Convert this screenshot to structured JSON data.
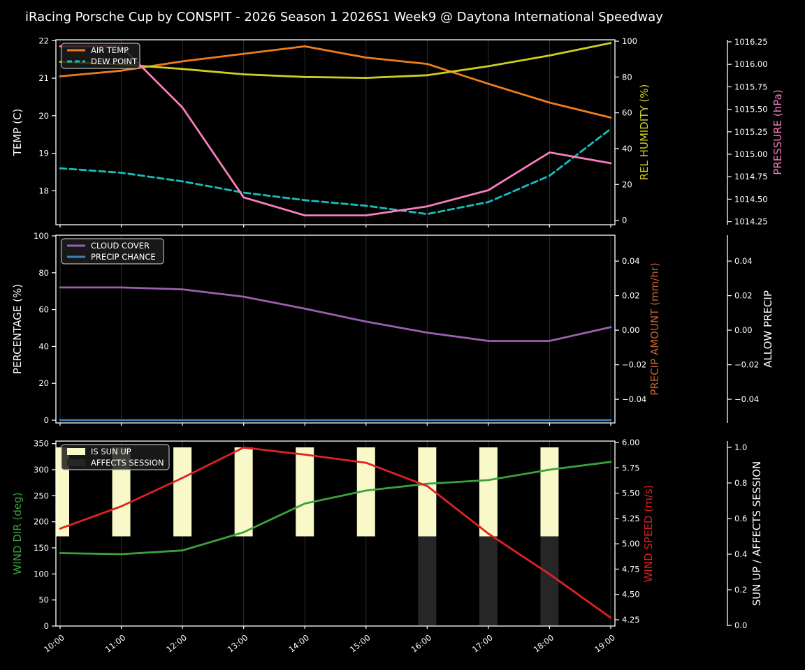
{
  "title": "iRacing Porsche Cup by CONSPIT - 2026 Season 1 2026S1 Week9 @ Daytona International Speedway",
  "colors": {
    "background": "#000000",
    "grid": "#2e2e2e",
    "spine": "#ffffff",
    "tick_text": "#ffffff",
    "legend_bg": "#1c1c1c",
    "legend_border": "#b3b3b3"
  },
  "chart_data": {
    "type": "line",
    "x_categories": [
      "10:00",
      "11:00",
      "12:00",
      "13:00",
      "14:00",
      "15:00",
      "16:00",
      "17:00",
      "18:00",
      "19:00"
    ],
    "panels": [
      {
        "id": "temperature-humidity-pressure",
        "legend": [
          {
            "label": "AIR TEMP",
            "swatch": "line",
            "color": "#ef7d1d"
          },
          {
            "label": "DEW POINT",
            "swatch": "dashed-line",
            "color": "#17bebb"
          }
        ],
        "axes": {
          "left": {
            "label": "TEMP (C)",
            "color": "#ffffff",
            "ticks": [
              "22",
              "21",
              "20",
              "19",
              "18"
            ],
            "tick_values": [
              22,
              21,
              20,
              19,
              18
            ],
            "range": [
              17.095,
              22.024
            ]
          },
          "right_inner": {
            "label": "REL HUMIDITY (%)",
            "color": "#cfcf1f",
            "ticks": [
              "100",
              "80",
              "60",
              "40",
              "20",
              "0"
            ],
            "tick_values": [
              100,
              80,
              60,
              40,
              20,
              0
            ],
            "range": [
              -2.5,
              100.78
            ]
          },
          "right_outer": {
            "label": "PRESSURE (hPa)",
            "color": "#f77fbe",
            "ticks": [
              "1016.25",
              "1016.00",
              "1015.75",
              "1015.50",
              "1015.25",
              "1015.00",
              "1014.75",
              "1014.50",
              "1014.25"
            ],
            "tick_values": [
              1016.25,
              1016.0,
              1015.75,
              1015.5,
              1015.25,
              1015.0,
              1014.75,
              1014.5,
              1014.25
            ],
            "range": [
              1014.216,
              1016.273
            ]
          }
        },
        "series": [
          {
            "name": "AIR TEMP",
            "axis": "left",
            "color": "#ef7d1d",
            "dash": null,
            "values": [
              21.05,
              21.2,
              21.45,
              21.65,
              21.85,
              21.55,
              21.38,
              20.85,
              20.35,
              19.95
            ]
          },
          {
            "name": "DEW POINT",
            "axis": "left",
            "color": "#17bebb",
            "dash": "9 5",
            "values": [
              18.6,
              18.48,
              18.25,
              17.95,
              17.75,
              17.6,
              17.38,
              17.7,
              18.4,
              19.65
            ]
          },
          {
            "name": "REL HUMIDITY",
            "axis": "right_inner",
            "color": "#cfcf1f",
            "dash": null,
            "values": [
              88.5,
              87,
              84.5,
              81.5,
              80,
              79.5,
              81,
              86,
              92,
              99
            ]
          },
          {
            "name": "PRESSURE",
            "axis": "right_outer",
            "color": "#f77fbe",
            "dash": null,
            "values": [
              1016.2,
              1016.2,
              1015.52,
              1014.52,
              1014.32,
              1014.32,
              1014.42,
              1014.6,
              1015.02,
              1014.9
            ]
          }
        ]
      },
      {
        "id": "cloud-precip",
        "legend": [
          {
            "label": "CLOUD COVER",
            "swatch": "line",
            "color": "#9a60b0"
          },
          {
            "label": "PRECIP CHANCE",
            "swatch": "line",
            "color": "#3f7fb7"
          }
        ],
        "axes": {
          "left": {
            "label": "PERCENTAGE (%)",
            "color": "#ffffff",
            "ticks": [
              "100",
              "80",
              "60",
              "40",
              "20",
              "0"
            ],
            "tick_values": [
              100,
              80,
              60,
              40,
              20,
              0
            ],
            "range": [
              -1.5,
              100.38
            ]
          },
          "right_inner": {
            "label": "PRECIP AMOUNT (mm/hr)",
            "color": "#c16232",
            "ticks": [
              "0.04",
              "0.02",
              "0.00",
              "−0.02",
              "−0.04"
            ],
            "tick_values": [
              0.04,
              0.02,
              0.0,
              -0.02,
              -0.04
            ],
            "range": [
              -0.0537,
              0.055
            ]
          },
          "right_outer": {
            "label": "ALLOW PRECIP",
            "color": "#ffffff",
            "ticks": [
              "0.04",
              "0.02",
              "0.00",
              "−0.02",
              "−0.04"
            ],
            "tick_values": [
              0.04,
              0.02,
              0.0,
              -0.02,
              -0.04
            ],
            "range": [
              -0.0537,
              0.055
            ]
          }
        },
        "series": [
          {
            "name": "CLOUD COVER",
            "axis": "left",
            "color": "#9a60b0",
            "dash": null,
            "values": [
              72,
              72,
              71,
              67,
              60.5,
              53.5,
              47.5,
              43,
              43,
              50.5
            ]
          },
          {
            "name": "PRECIP CHANCE",
            "axis": "left",
            "color": "#3f7fb7",
            "dash": null,
            "values": [
              0,
              0,
              0,
              0,
              0,
              0,
              0,
              0,
              0,
              0
            ]
          }
        ]
      },
      {
        "id": "wind-sun",
        "legend": [
          {
            "label": "IS SUN UP",
            "swatch": "patch",
            "color": "#f8f8c8"
          },
          {
            "label": "AFFECTS SESSION",
            "swatch": "patch",
            "color": "#262626"
          }
        ],
        "axes": {
          "left": {
            "label": "WIND DIR (deg)",
            "color": "#3aa23a",
            "ticks": [
              "350",
              "300",
              "250",
              "200",
              "150",
              "100",
              "50",
              "0"
            ],
            "tick_values": [
              350,
              300,
              250,
              200,
              150,
              100,
              50,
              0
            ],
            "range": [
              0,
              354.9
            ]
          },
          "right_inner": {
            "label": "WIND SPEED (m/s)",
            "color": "#dd2222",
            "ticks": [
              "6.00",
              "5.75",
              "5.50",
              "5.25",
              "5.00",
              "4.75",
              "4.50",
              "4.25"
            ],
            "tick_values": [
              6.0,
              5.75,
              5.5,
              5.25,
              5.0,
              4.75,
              4.5,
              4.25
            ],
            "range": [
              4.188,
              6.014
            ]
          },
          "right_outer": {
            "label": "SUN UP / AFFECTS SESSION",
            "color": "#ffffff",
            "ticks": [
              "1.0",
              "0.8",
              "0.6",
              "0.4",
              "0.2",
              "0.0"
            ],
            "tick_values": [
              1.0,
              0.8,
              0.6,
              0.4,
              0.2,
              0.0
            ],
            "range": [
              -0.0039,
              1.0353
            ]
          }
        },
        "bars": [
          {
            "name": "IS SUN UP",
            "axis": "right_outer",
            "color": "#f8f8c8",
            "from": 0.5,
            "to": 1.0,
            "flags": [
              true,
              true,
              true,
              true,
              true,
              true,
              true,
              true,
              true,
              false
            ]
          },
          {
            "name": "AFFECTS SESSION",
            "axis": "right_outer",
            "color": "#262626",
            "from": 0.0,
            "to": 0.5,
            "flags": [
              false,
              false,
              false,
              false,
              false,
              false,
              true,
              true,
              true,
              false
            ]
          }
        ],
        "series": [
          {
            "name": "WIND DIR",
            "axis": "left",
            "color": "#3aa23a",
            "dash": null,
            "values": [
              140,
              138,
              145,
              180,
              235,
              260,
              273,
              280,
              300,
              315
            ]
          },
          {
            "name": "WIND SPEED",
            "axis": "right_inner",
            "color": "#dd2222",
            "dash": null,
            "values": [
              5.15,
              5.37,
              5.65,
              5.95,
              5.88,
              5.8,
              5.57,
              5.1,
              4.7,
              4.27
            ]
          }
        ]
      }
    ]
  }
}
